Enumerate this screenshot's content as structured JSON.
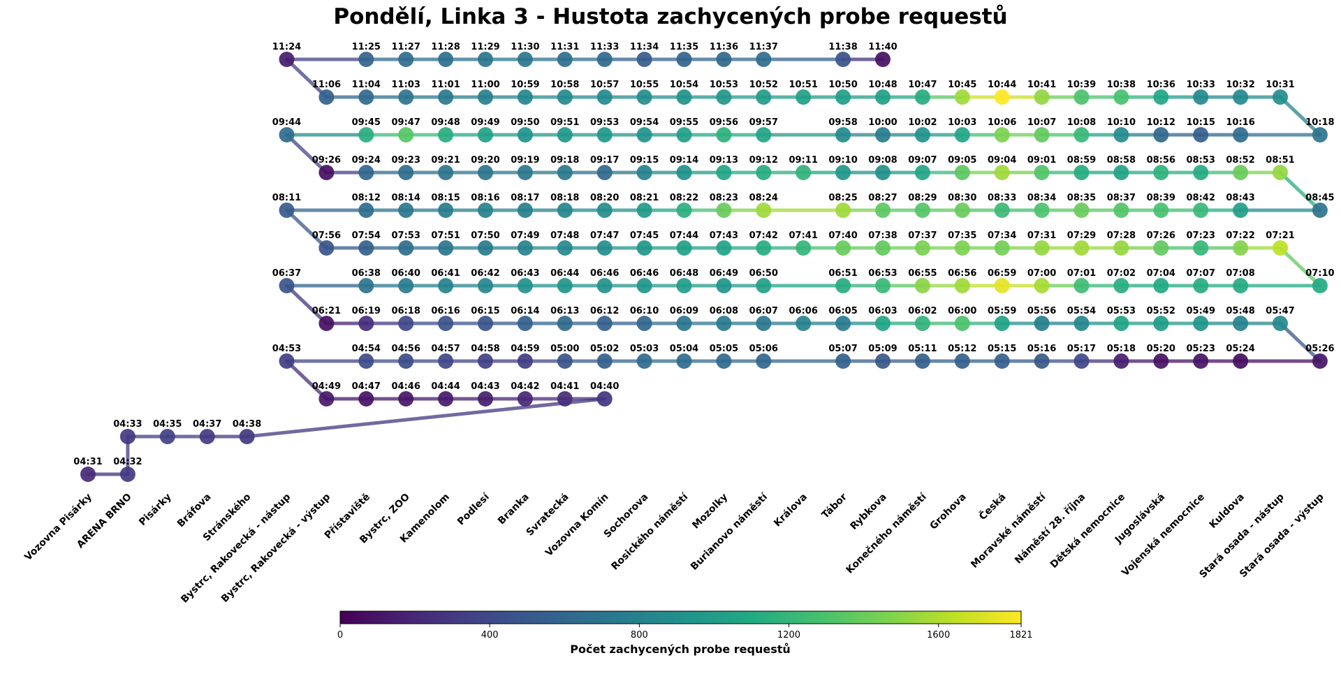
{
  "chart_data": {
    "type": "line",
    "title": "Pondělí, Linka 3 - Hustota zachycených probe requestů",
    "stops": [
      "Vozovna Pisárky",
      "ARENA BRNO",
      "Pisárky",
      "Bráfova",
      "Stránského",
      "Bystrc, Rakovecká - nástup",
      "Bystrc, Rakovecká - výstup",
      "Přístaviště",
      "Bystrc, ZOO",
      "Kamenolom",
      "Podlesí",
      "Branka",
      "Svratecká",
      "Vozovna Komín",
      "Sochorova",
      "Rosického náměstí",
      "Mozolky",
      "Burianovo náměstí",
      "Králova",
      "Tábor",
      "Rybkova",
      "Konečného náměstí",
      "Grohova",
      "Česká",
      "Moravské náměstí",
      "Náměstí 28. října",
      "Dětská nemocnice",
      "Jugoslávská",
      "Vojenská nemocnice",
      "Kuldova",
      "Stará osada - nástup",
      "Stará osada - výstup"
    ],
    "colorbar": {
      "label": "Počet zachycených probe requestů",
      "min": 0,
      "max": 1821,
      "ticks": [
        "0",
        "400",
        "800",
        "1200",
        "1600",
        "1821"
      ]
    },
    "segments": [
      {
        "points": [
          [
            "04:31",
            0,
            205
          ],
          [
            "04:32",
            1,
            300
          ]
        ]
      },
      {
        "points": [
          [
            "04:33",
            1,
            300
          ],
          [
            "04:35",
            2,
            345
          ],
          [
            "04:37",
            3,
            315
          ],
          [
            "04:38",
            4,
            300
          ]
        ]
      },
      {
        "points": [
          [
            "04:40",
            13,
            280
          ],
          [
            "04:41",
            12,
            240
          ],
          [
            "04:42",
            11,
            200
          ],
          [
            "04:43",
            10,
            150
          ],
          [
            "04:44",
            9,
            130
          ],
          [
            "04:46",
            8,
            110
          ],
          [
            "04:47",
            7,
            100
          ],
          [
            "04:49",
            6,
            120
          ]
        ]
      },
      {
        "points": [
          [
            "04:53",
            5,
            330
          ],
          [
            "04:54",
            7,
            410
          ],
          [
            "04:56",
            8,
            420
          ],
          [
            "04:57",
            9,
            380
          ],
          [
            "04:58",
            10,
            340
          ],
          [
            "04:59",
            11,
            320
          ],
          [
            "05:00",
            12,
            470
          ],
          [
            "05:02",
            13,
            560
          ],
          [
            "05:03",
            14,
            650
          ],
          [
            "05:04",
            15,
            640
          ],
          [
            "05:05",
            16,
            630
          ],
          [
            "05:06",
            17,
            600
          ],
          [
            "05:07",
            19,
            560
          ],
          [
            "05:09",
            20,
            500
          ],
          [
            "05:11",
            21,
            560
          ],
          [
            "05:12",
            22,
            550
          ],
          [
            "05:15",
            23,
            550
          ],
          [
            "05:16",
            24,
            500
          ],
          [
            "05:17",
            25,
            380
          ],
          [
            "05:18",
            26,
            150
          ],
          [
            "05:20",
            27,
            90
          ],
          [
            "05:23",
            28,
            100
          ],
          [
            "05:24",
            29,
            70
          ],
          [
            "05:26",
            31,
            100
          ]
        ]
      },
      {
        "points": [
          [
            "05:47",
            30,
            850
          ],
          [
            "05:48",
            29,
            800
          ],
          [
            "05:49",
            28,
            950
          ],
          [
            "05:52",
            27,
            1000
          ],
          [
            "05:53",
            26,
            1050
          ],
          [
            "05:54",
            25,
            820
          ],
          [
            "05:56",
            24,
            780
          ],
          [
            "05:59",
            23,
            1050
          ],
          [
            "06:00",
            22,
            1300
          ],
          [
            "06:02",
            21,
            1180
          ],
          [
            "06:03",
            20,
            1060
          ],
          [
            "06:05",
            19,
            740
          ],
          [
            "06:06",
            18,
            800
          ],
          [
            "06:07",
            17,
            720
          ],
          [
            "06:08",
            16,
            740
          ],
          [
            "06:09",
            15,
            700
          ],
          [
            "06:10",
            14,
            600
          ],
          [
            "06:12",
            13,
            550
          ],
          [
            "06:13",
            12,
            620
          ],
          [
            "06:14",
            11,
            560
          ],
          [
            "06:15",
            10,
            480
          ],
          [
            "06:16",
            9,
            470
          ],
          [
            "06:18",
            8,
            400
          ],
          [
            "06:19",
            7,
            240
          ],
          [
            "06:21",
            6,
            80
          ]
        ]
      },
      {
        "points": [
          [
            "06:37",
            5,
            470
          ],
          [
            "06:38",
            7,
            700
          ],
          [
            "06:40",
            8,
            760
          ],
          [
            "06:41",
            9,
            800
          ],
          [
            "06:42",
            10,
            830
          ],
          [
            "06:43",
            11,
            900
          ],
          [
            "06:44",
            12,
            950
          ],
          [
            "06:46",
            13,
            920
          ],
          [
            "06:46",
            14,
            950
          ],
          [
            "06:48",
            15,
            1000
          ],
          [
            "06:49",
            16,
            940
          ],
          [
            "06:50",
            17,
            1030
          ],
          [
            "06:51",
            19,
            1120
          ],
          [
            "06:53",
            20,
            1220
          ],
          [
            "06:55",
            21,
            1500
          ],
          [
            "06:56",
            22,
            1560
          ],
          [
            "06:59",
            23,
            1750
          ],
          [
            "07:00",
            24,
            1580
          ],
          [
            "07:01",
            25,
            1250
          ],
          [
            "07:02",
            26,
            1130
          ],
          [
            "07:04",
            27,
            1090
          ],
          [
            "07:07",
            28,
            1120
          ],
          [
            "07:08",
            29,
            1110
          ],
          [
            "07:10",
            31,
            1100
          ]
        ]
      },
      {
        "points": [
          [
            "07:21",
            30,
            1640
          ],
          [
            "07:22",
            29,
            1480
          ],
          [
            "07:23",
            28,
            1200
          ],
          [
            "07:26",
            27,
            1380
          ],
          [
            "07:28",
            26,
            1530
          ],
          [
            "07:29",
            25,
            1560
          ],
          [
            "07:31",
            24,
            1530
          ],
          [
            "07:34",
            23,
            1430
          ],
          [
            "07:35",
            22,
            1460
          ],
          [
            "07:37",
            21,
            1450
          ],
          [
            "07:38",
            20,
            1380
          ],
          [
            "07:40",
            19,
            1400
          ],
          [
            "07:41",
            18,
            1190
          ],
          [
            "07:42",
            17,
            1120
          ],
          [
            "07:43",
            16,
            1050
          ],
          [
            "07:44",
            15,
            1030
          ],
          [
            "07:45",
            14,
            960
          ],
          [
            "07:47",
            13,
            880
          ],
          [
            "07:48",
            12,
            850
          ],
          [
            "07:49",
            11,
            800
          ],
          [
            "07:50",
            10,
            760
          ],
          [
            "07:51",
            9,
            710
          ],
          [
            "07:53",
            8,
            640
          ],
          [
            "07:54",
            7,
            560
          ],
          [
            "07:56",
            6,
            480
          ]
        ]
      },
      {
        "points": [
          [
            "08:11",
            5,
            510
          ],
          [
            "08:12",
            7,
            650
          ],
          [
            "08:14",
            8,
            720
          ],
          [
            "08:15",
            9,
            760
          ],
          [
            "08:16",
            10,
            800
          ],
          [
            "08:17",
            11,
            780
          ],
          [
            "08:18",
            12,
            840
          ],
          [
            "08:20",
            13,
            880
          ],
          [
            "08:21",
            14,
            980
          ],
          [
            "08:22",
            15,
            1150
          ],
          [
            "08:23",
            16,
            1400
          ],
          [
            "08:24",
            17,
            1560
          ],
          [
            "08:25",
            19,
            1560
          ],
          [
            "08:27",
            20,
            1360
          ],
          [
            "08:29",
            21,
            1330
          ],
          [
            "08:30",
            22,
            1400
          ],
          [
            "08:33",
            23,
            1230
          ],
          [
            "08:34",
            24,
            1300
          ],
          [
            "08:35",
            25,
            1400
          ],
          [
            "08:37",
            26,
            1320
          ],
          [
            "08:39",
            27,
            1280
          ],
          [
            "08:42",
            28,
            1220
          ],
          [
            "08:43",
            29,
            1010
          ],
          [
            "08:45",
            31,
            700
          ]
        ]
      },
      {
        "points": [
          [
            "08:51",
            30,
            1530
          ],
          [
            "08:52",
            29,
            1400
          ],
          [
            "08:53",
            28,
            1110
          ],
          [
            "08:56",
            27,
            1170
          ],
          [
            "08:58",
            26,
            1050
          ],
          [
            "08:59",
            25,
            1120
          ],
          [
            "09:01",
            24,
            1320
          ],
          [
            "09:04",
            23,
            1560
          ],
          [
            "09:05",
            22,
            1360
          ],
          [
            "09:07",
            21,
            1070
          ],
          [
            "09:08",
            20,
            900
          ],
          [
            "09:10",
            19,
            960
          ],
          [
            "09:11",
            18,
            1180
          ],
          [
            "09:12",
            17,
            1120
          ],
          [
            "09:13",
            16,
            1080
          ],
          [
            "09:14",
            15,
            900
          ],
          [
            "09:15",
            14,
            800
          ],
          [
            "09:17",
            13,
            620
          ],
          [
            "09:18",
            12,
            720
          ],
          [
            "09:19",
            11,
            720
          ],
          [
            "09:20",
            10,
            700
          ],
          [
            "09:21",
            9,
            700
          ],
          [
            "09:23",
            8,
            640
          ],
          [
            "09:24",
            7,
            600
          ],
          [
            "09:26",
            6,
            80
          ]
        ]
      },
      {
        "points": [
          [
            "09:44",
            5,
            640
          ],
          [
            "09:45",
            7,
            1130
          ],
          [
            "09:47",
            8,
            1340
          ],
          [
            "09:48",
            9,
            1130
          ],
          [
            "09:49",
            10,
            1040
          ],
          [
            "09:50",
            11,
            920
          ],
          [
            "09:51",
            12,
            960
          ],
          [
            "09:53",
            13,
            960
          ],
          [
            "09:54",
            14,
            920
          ],
          [
            "09:55",
            15,
            1010
          ],
          [
            "09:56",
            16,
            1160
          ],
          [
            "09:57",
            17,
            1060
          ],
          [
            "09:58",
            19,
            860
          ],
          [
            "10:00",
            20,
            760
          ],
          [
            "10:02",
            21,
            920
          ],
          [
            "10:03",
            22,
            1080
          ],
          [
            "10:06",
            23,
            1460
          ],
          [
            "10:07",
            24,
            1380
          ],
          [
            "10:08",
            25,
            1210
          ],
          [
            "10:10",
            26,
            880
          ],
          [
            "10:12",
            27,
            620
          ],
          [
            "10:15",
            28,
            540
          ],
          [
            "10:16",
            29,
            640
          ],
          [
            "10:18",
            31,
            700
          ]
        ]
      },
      {
        "points": [
          [
            "10:31",
            30,
            880
          ],
          [
            "10:32",
            29,
            860
          ],
          [
            "10:33",
            28,
            860
          ],
          [
            "10:36",
            27,
            1080
          ],
          [
            "10:38",
            26,
            1280
          ],
          [
            "10:39",
            25,
            1300
          ],
          [
            "10:41",
            24,
            1520
          ],
          [
            "10:44",
            23,
            1821
          ],
          [
            "10:45",
            22,
            1560
          ],
          [
            "10:47",
            21,
            1120
          ],
          [
            "10:48",
            20,
            1020
          ],
          [
            "10:50",
            19,
            1010
          ],
          [
            "10:51",
            18,
            1020
          ],
          [
            "10:52",
            17,
            1000
          ],
          [
            "10:53",
            16,
            960
          ],
          [
            "10:54",
            15,
            930
          ],
          [
            "10:55",
            14,
            880
          ],
          [
            "10:57",
            13,
            860
          ],
          [
            "10:58",
            12,
            860
          ],
          [
            "10:59",
            11,
            840
          ],
          [
            "11:00",
            10,
            780
          ],
          [
            "11:01",
            9,
            740
          ],
          [
            "11:03",
            8,
            700
          ],
          [
            "11:04",
            7,
            620
          ],
          [
            "11:06",
            6,
            560
          ]
        ]
      },
      {
        "points": [
          [
            "11:24",
            5,
            140
          ],
          [
            "11:25",
            7,
            580
          ],
          [
            "11:27",
            8,
            640
          ],
          [
            "11:28",
            9,
            670
          ],
          [
            "11:29",
            10,
            700
          ],
          [
            "11:30",
            11,
            710
          ],
          [
            "11:31",
            12,
            660
          ],
          [
            "11:33",
            13,
            620
          ],
          [
            "11:34",
            14,
            520
          ],
          [
            "11:35",
            15,
            580
          ],
          [
            "11:36",
            16,
            620
          ],
          [
            "11:37",
            17,
            640
          ],
          [
            "11:38",
            19,
            460
          ],
          [
            "11:40",
            20,
            80
          ]
        ]
      }
    ]
  }
}
